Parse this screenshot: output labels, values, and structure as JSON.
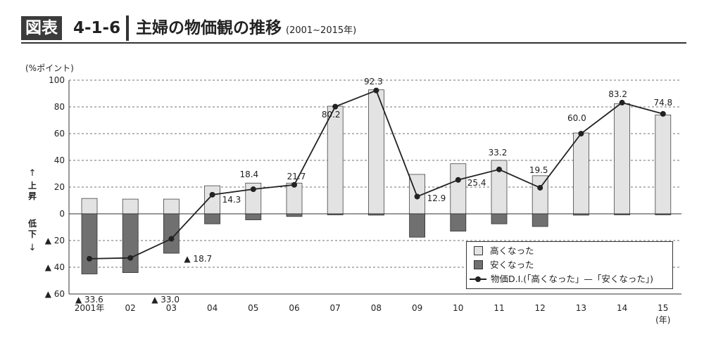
{
  "header": {
    "badge": "図表",
    "figure_number": "4-1-6",
    "title": "主婦の物価観の推移",
    "period": "(2001~2015年)"
  },
  "colors": {
    "rise_bar": "#e3e3e3",
    "fall_bar": "#707070",
    "line": "#222222"
  },
  "chart_data": {
    "type": "bar",
    "title": "主婦の物価観の推移",
    "ylabel": "(%ポイント)",
    "y_up_label": "上昇",
    "y_down_label": "低下",
    "x_unit": "(年)",
    "categories": [
      "2001年",
      "02",
      "03",
      "04",
      "05",
      "06",
      "07",
      "08",
      "09",
      "10",
      "11",
      "12",
      "13",
      "14",
      "15"
    ],
    "ylim": [
      -60,
      100
    ],
    "yticks": [
      {
        "value": 100,
        "label": "100"
      },
      {
        "value": 80,
        "label": "80"
      },
      {
        "value": 60,
        "label": "60"
      },
      {
        "value": 40,
        "label": "40"
      },
      {
        "value": 20,
        "label": "20"
      },
      {
        "value": 0,
        "label": "0"
      },
      {
        "value": -20,
        "label": "▲ 20"
      },
      {
        "value": -40,
        "label": "▲ 40"
      },
      {
        "value": -60,
        "label": "▲ 60"
      }
    ],
    "grid": true,
    "legend_position": "bottom-right",
    "series": [
      {
        "name": "高くなった",
        "type": "bar",
        "values": [
          11.5,
          11.0,
          11.0,
          21.0,
          23.0,
          23.0,
          80.5,
          92.8,
          29.5,
          37.5,
          40.0,
          28.5,
          60.5,
          82.5,
          74.0
        ]
      },
      {
        "name": "安くなった",
        "type": "bar",
        "values": [
          -45.0,
          -44.0,
          -29.5,
          -7.5,
          -4.5,
          -2.0,
          -0.5,
          -1.0,
          -17.5,
          -13.0,
          -7.5,
          -9.5,
          -1.0,
          -0.5,
          -0.5
        ]
      },
      {
        "name": "物価D.I.(「高くなった」—「安くなった」)",
        "type": "line",
        "values": [
          -33.6,
          -33.0,
          -18.7,
          14.3,
          18.4,
          21.7,
          80.2,
          92.3,
          12.9,
          25.4,
          33.2,
          19.5,
          60.0,
          83.2,
          74.8
        ],
        "labels": [
          "▲ 33.6",
          "▲ 33.0",
          "▲ 18.7",
          "14.3",
          "18.4",
          "21.7",
          "80.2",
          "92.3",
          "12.9",
          "25.4",
          "33.2",
          "19.5",
          "60.0",
          "83.2",
          "74.8"
        ]
      }
    ]
  }
}
